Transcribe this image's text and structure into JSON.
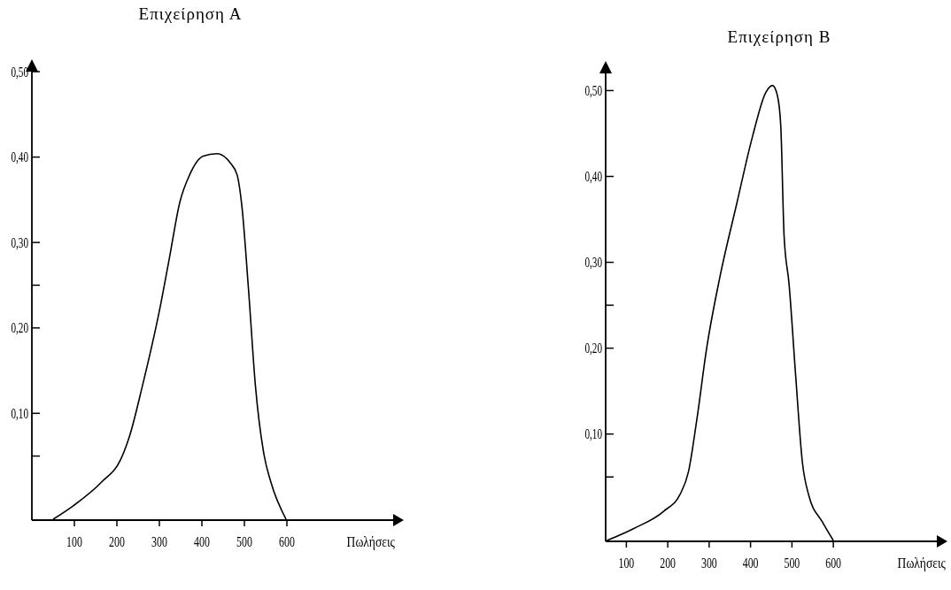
{
  "chart_data": [
    {
      "type": "line",
      "title": "Επιχείρηση Α",
      "xlabel": "Πωλήσεις",
      "xlim": [
        0,
        850
      ],
      "xticks": [
        100,
        200,
        300,
        400,
        500,
        600
      ],
      "ylim": [
        -0.025,
        0.5
      ],
      "yticks": [
        {
          "value": 0.1,
          "label": "0,10"
        },
        {
          "value": 0.05,
          "label": null
        },
        {
          "value": 0.2,
          "label": "0,20"
        },
        {
          "value": 0.25,
          "label": null
        },
        {
          "value": 0.3,
          "label": "0,30"
        },
        {
          "value": 0.4,
          "label": "0,40"
        },
        {
          "value": 0.5,
          "label": "0,50"
        }
      ],
      "series": [
        {
          "color": "#000000",
          "x": [
            50,
            98,
            165,
            209,
            229,
            260,
            300,
            324,
            348,
            371,
            403,
            435,
            467,
            483,
            494,
            510,
            526,
            546,
            562,
            598
          ],
          "values": [
            -0.024,
            -0.008,
            0.02,
            0.046,
            0.072,
            0.132,
            0.22,
            0.283,
            0.347,
            0.379,
            0.401,
            0.404,
            0.393,
            0.379,
            0.343,
            0.243,
            0.132,
            0.052,
            0.02,
            -0.024
          ]
        }
      ]
    },
    {
      "type": "line",
      "title": "Επιχείρηση Β",
      "xlabel": "Πωλήσεις",
      "xlim": [
        50,
        850
      ],
      "xticks": [
        100,
        200,
        300,
        400,
        500,
        600
      ],
      "ylim": [
        -0.025,
        0.52
      ],
      "yticks": [
        {
          "value": 0.05,
          "label": null
        },
        {
          "value": 0.1,
          "label": "0,10"
        },
        {
          "value": 0.2,
          "label": "0,20"
        },
        {
          "value": 0.25,
          "label": null
        },
        {
          "value": 0.3,
          "label": "0,30"
        },
        {
          "value": 0.4,
          "label": "0,40"
        },
        {
          "value": 0.5,
          "label": "0,50"
        }
      ],
      "series": [
        {
          "color": "#000000",
          "x": [
            53,
            118,
            190,
            230,
            250,
            270,
            294,
            326,
            366,
            405,
            437,
            453,
            465,
            473,
            481,
            493,
            509,
            525,
            541,
            573,
            600
          ],
          "values": [
            -0.024,
            -0.01,
            0.01,
            0.03,
            0.056,
            0.116,
            0.2,
            0.283,
            0.367,
            0.447,
            0.498,
            0.506,
            0.494,
            0.459,
            0.331,
            0.275,
            0.168,
            0.068,
            0.028,
            -0.002,
            -0.024
          ]
        }
      ]
    }
  ]
}
